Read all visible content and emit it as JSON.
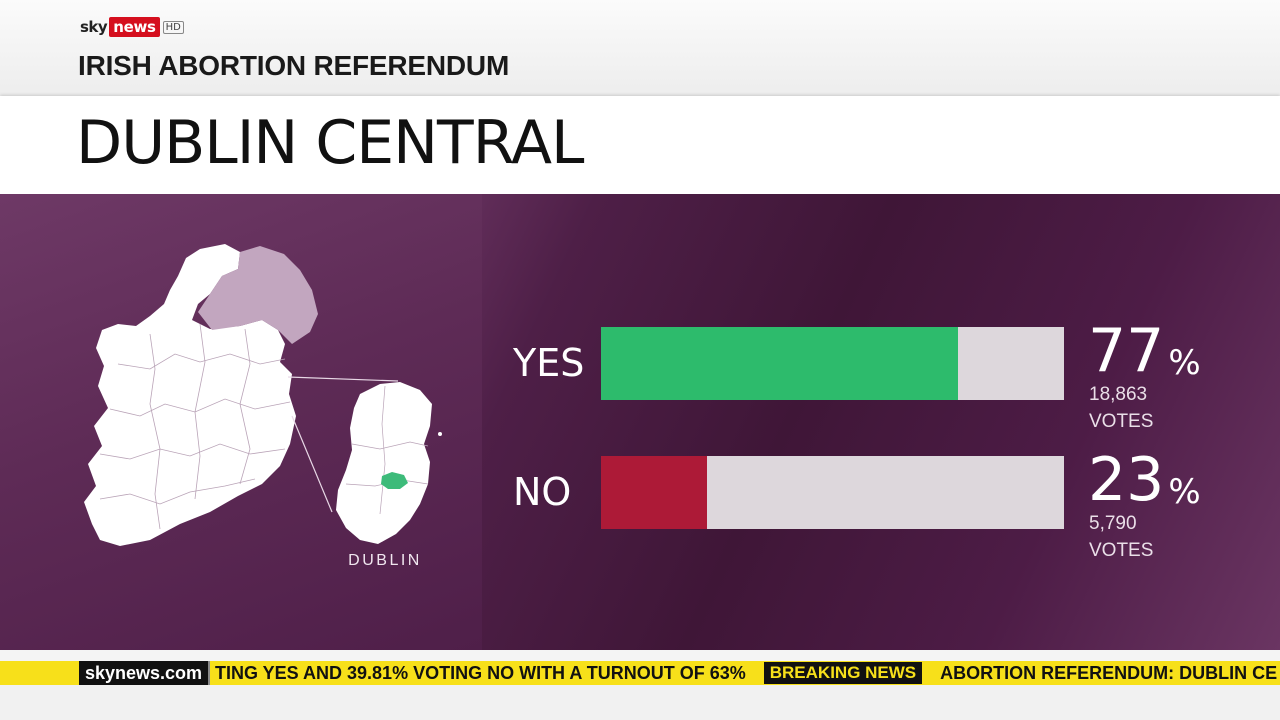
{
  "header": {
    "logo": {
      "sky": "sky",
      "news": "news",
      "hd": "HD"
    },
    "programme_title": "IRISH ABORTION REFERENDUM",
    "page_title": "DUBLIN CENTRAL"
  },
  "map": {
    "inset_label": "DUBLIN",
    "highlight_color": "#3dbb7a",
    "land_color": "#ffffff",
    "northern_ireland_color": "#c2a6bf"
  },
  "chart_data": {
    "type": "bar",
    "orientation": "horizontal",
    "categories": [
      "YES",
      "NO"
    ],
    "values": [
      77,
      23
    ],
    "value_suffix": "%",
    "votes": [
      "18,863",
      "5,790"
    ],
    "votes_unit": "VOTES",
    "colors": [
      "#2dbb6c",
      "#ad1a37"
    ],
    "track_color": "#ddd7dc",
    "xlim": [
      0,
      100
    ],
    "grid": false
  },
  "ticker": {
    "brand": "skynews.com",
    "text_before": "TING YES AND 39.81% VOTING NO WITH A TURNOUT OF 63%",
    "badge": "BREAKING NEWS",
    "text_after": "ABORTION REFERENDUM: DUBLIN CE"
  }
}
